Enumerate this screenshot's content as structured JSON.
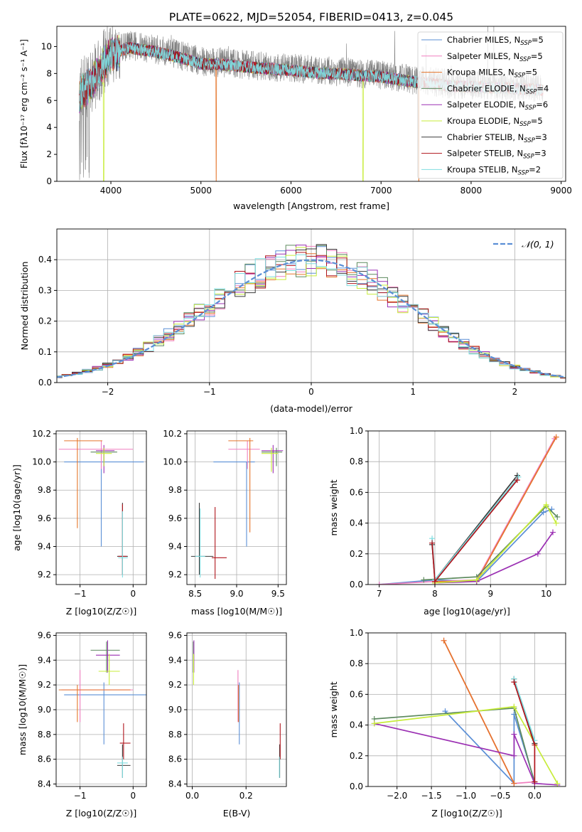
{
  "title": "PLATE=0622, MJD=52054, FIBERID=0413, z=0.045",
  "colors": {
    "chabrier_miles": "#5b8fd6",
    "salpeter_miles": "#f07fbf",
    "kroupa_miles": "#e5752a",
    "chabrier_elodie": "#5d8a5e",
    "salpeter_elodie": "#9b30b3",
    "kroupa_elodie": "#c7ec3a",
    "chabrier_stelib": "#3a3a3a",
    "salpeter_stelib": "#b0141c",
    "kroupa_stelib": "#7fdde0",
    "data": "#808080",
    "gaussian": "#5b8fd6",
    "grid": "#b0b0b0"
  },
  "chart_data": [
    {
      "id": "spectrum",
      "type": "line",
      "xlabel": "wavelength [Angstrom, rest frame]",
      "ylabel": "Flux [fλ10⁻¹⁷ erg cm⁻² s⁻¹ A⁻¹]",
      "xlim": [
        3400,
        9050
      ],
      "ylim": [
        0,
        11.5
      ],
      "xticks": [
        "4000",
        "5000",
        "6000",
        "7000",
        "8000",
        "9000"
      ],
      "yticks": [
        "0",
        "2",
        "4",
        "6",
        "8",
        "10"
      ],
      "grid": false,
      "legend_position": "top-right",
      "legend": [
        {
          "label": "Chabrier MILES, N",
          "sub": "SSP",
          "suffix": "=5"
        },
        {
          "label": "Salpeter MILES, N",
          "sub": "SSP",
          "suffix": "=5"
        },
        {
          "label": "Kroupa MILES, N",
          "sub": "SSP",
          "suffix": "=5"
        },
        {
          "label": "Chabrier ELODIE, N",
          "sub": "SSP",
          "suffix": "=4"
        },
        {
          "label": "Salpeter ELODIE, N",
          "sub": "SSP",
          "suffix": "=6"
        },
        {
          "label": "Kroupa ELODIE, N",
          "sub": "SSP",
          "suffix": "=5"
        },
        {
          "label": "Chabrier STELIB, N",
          "sub": "SSP",
          "suffix": "=3"
        },
        {
          "label": "Salpeter STELIB, N",
          "sub": "SSP",
          "suffix": "=3"
        },
        {
          "label": "Kroupa STELIB, N",
          "sub": "SSP",
          "suffix": "=2"
        }
      ],
      "data_trend": {
        "x": [
          3650,
          3800,
          4000,
          4200,
          4500,
          4800,
          5000,
          5300,
          5600,
          6000,
          6300,
          6600,
          7000,
          7400,
          7800,
          8200,
          8600,
          8800
        ],
        "y": [
          6.5,
          7.6,
          9.6,
          10.1,
          9.8,
          9.3,
          8.9,
          8.8,
          8.6,
          8.4,
          8.2,
          8.1,
          7.9,
          7.5,
          7.2,
          7.1,
          7.0,
          6.9
        ]
      },
      "model_dropouts": [
        {
          "x": 3920,
          "series": "kroupa_elodie"
        },
        {
          "x": 5170,
          "series": "kroupa_miles"
        },
        {
          "x": 6800,
          "series": "kroupa_elodie"
        },
        {
          "x": 7420,
          "series": "kroupa_miles"
        }
      ]
    },
    {
      "id": "residuals",
      "type": "bar",
      "xlabel": "(data-model)/error",
      "ylabel": "Normed distribution",
      "xlim": [
        -2.5,
        2.5
      ],
      "ylim": [
        0,
        0.5
      ],
      "xticks": [
        "−2",
        "−1",
        "0",
        "1",
        "2"
      ],
      "yticks": [
        "0.0",
        "0.1",
        "0.2",
        "0.3",
        "0.4"
      ],
      "grid": true,
      "legend_position": "top-right",
      "legend": [
        {
          "label": "𝒩(0, 1)"
        }
      ],
      "bin_width": 0.1
    },
    {
      "id": "age-vs-z",
      "type": "scatter",
      "xlabel": "Z [log10(Z/Z☉)]",
      "ylabel": "age  [log10(age/yr)]",
      "xlim": [
        -1.45,
        0.25
      ],
      "ylim": [
        9.13,
        10.22
      ],
      "xticks": [
        "−1",
        "0"
      ],
      "xtickvals": [
        -1,
        0
      ],
      "yticks": [
        "9.2",
        "9.4",
        "9.6",
        "9.8",
        "10.0",
        "10.2"
      ],
      "ytickvals": [
        9.2,
        9.4,
        9.6,
        9.8,
        10.0,
        10.2
      ],
      "grid": true,
      "points": [
        {
          "s": "chabrier_miles",
          "x": -0.6,
          "y": 10.0,
          "xe": [
            -1.3,
            0.2
          ],
          "ye": [
            9.4,
            10.0
          ]
        },
        {
          "s": "salpeter_miles",
          "x": -0.6,
          "y": 10.09,
          "xe": [
            -1.4,
            0.0
          ],
          "ye": [
            9.95,
            10.15
          ]
        },
        {
          "s": "kroupa_miles",
          "x": -1.05,
          "y": 10.15,
          "xe": [
            -1.3,
            -0.58
          ],
          "ye": [
            9.53,
            10.17
          ]
        },
        {
          "s": "chabrier_elodie",
          "x": -0.55,
          "y": 10.07,
          "xe": [
            -0.8,
            -0.3
          ],
          "ye": [
            9.97,
            10.1
          ]
        },
        {
          "s": "salpeter_elodie",
          "x": -0.55,
          "y": 10.08,
          "xe": [
            -0.7,
            -0.35
          ],
          "ye": [
            9.92,
            10.12
          ]
        },
        {
          "s": "kroupa_elodie",
          "x": -0.55,
          "y": 10.06,
          "xe": [
            -0.7,
            -0.4
          ],
          "ye": [
            9.97,
            10.1
          ]
        },
        {
          "s": "chabrier_stelib",
          "x": -0.2,
          "y": 9.33,
          "xe": [
            -0.3,
            -0.1
          ],
          "ye": [
            9.2,
            9.71
          ]
        },
        {
          "s": "salpeter_stelib",
          "x": -0.2,
          "y": 9.33,
          "xe": [
            -0.28,
            -0.12
          ],
          "ye": [
            9.2,
            9.7
          ]
        },
        {
          "s": "kroupa_stelib",
          "x": -0.2,
          "y": 9.32,
          "xe": [
            -0.28,
            -0.1
          ],
          "ye": [
            9.18,
            9.65
          ]
        }
      ]
    },
    {
      "id": "age-vs-mass",
      "type": "scatter",
      "xlabel": "mass [log10(M/M☉)]",
      "ylabel": "",
      "xlim": [
        8.4,
        9.6
      ],
      "ylim": [
        9.13,
        10.22
      ],
      "xticks": [
        "8.5",
        "9.0",
        "9.5"
      ],
      "xtickvals": [
        8.5,
        9.0,
        9.5
      ],
      "yticks": [
        "9.2",
        "9.4",
        "9.6",
        "9.8",
        "10.0",
        "10.2"
      ],
      "ytickvals": [
        9.2,
        9.4,
        9.6,
        9.8,
        10.0,
        10.2
      ],
      "grid": true,
      "points": [
        {
          "s": "chabrier_miles",
          "x": 9.12,
          "y": 10.0,
          "xe": [
            8.72,
            9.22
          ],
          "ye": [
            9.4,
            10.0
          ]
        },
        {
          "s": "salpeter_miles",
          "x": 9.13,
          "y": 10.09,
          "xe": [
            8.9,
            9.28
          ],
          "ye": [
            9.95,
            10.15
          ]
        },
        {
          "s": "kroupa_miles",
          "x": 9.16,
          "y": 10.15,
          "xe": [
            8.9,
            9.2
          ],
          "ye": [
            9.5,
            10.17
          ]
        },
        {
          "s": "chabrier_elodie",
          "x": 9.48,
          "y": 10.07,
          "xe": [
            9.3,
            9.55
          ],
          "ye": [
            9.97,
            10.1
          ]
        },
        {
          "s": "salpeter_elodie",
          "x": 9.44,
          "y": 10.08,
          "xe": [
            9.3,
            9.56
          ],
          "ye": [
            9.92,
            10.12
          ]
        },
        {
          "s": "kroupa_elodie",
          "x": 9.42,
          "y": 10.06,
          "xe": [
            9.3,
            9.5
          ],
          "ye": [
            9.93,
            10.1
          ]
        },
        {
          "s": "chabrier_stelib",
          "x": 8.55,
          "y": 9.33,
          "xe": [
            8.45,
            8.72
          ],
          "ye": [
            9.2,
            9.71
          ]
        },
        {
          "s": "salpeter_stelib",
          "x": 8.74,
          "y": 9.32,
          "xe": [
            8.7,
            8.88
          ],
          "ye": [
            9.17,
            9.68
          ]
        },
        {
          "s": "kroupa_stelib",
          "x": 8.56,
          "y": 9.33,
          "xe": [
            8.5,
            8.62
          ],
          "ye": [
            9.18,
            9.67
          ]
        }
      ]
    },
    {
      "id": "weight-vs-age",
      "type": "line",
      "xlabel": "age  [log10(age/yr)]",
      "ylabel": "mass weight",
      "xlim": [
        6.8,
        10.35
      ],
      "ylim": [
        0,
        1.0
      ],
      "xticks": [
        "7",
        "8",
        "9",
        "10"
      ],
      "xtickvals": [
        7,
        8,
        9,
        10
      ],
      "yticks": [
        "0.0",
        "0.2",
        "0.4",
        "0.6",
        "0.8",
        "1.0"
      ],
      "ytickvals": [
        0,
        0.2,
        0.4,
        0.6,
        0.8,
        1.0
      ],
      "grid": true,
      "series": [
        {
          "s": "chabrier_miles",
          "x": [
            7.0,
            8.0,
            8.75,
            9.95,
            10.1
          ],
          "y": [
            0.0,
            0.03,
            0.02,
            0.47,
            0.49
          ]
        },
        {
          "s": "salpeter_miles",
          "x": [
            7.0,
            8.0,
            8.75,
            10.15
          ],
          "y": [
            0.0,
            0.02,
            0.03,
            0.95
          ]
        },
        {
          "s": "kroupa_miles",
          "x": [
            8.0,
            8.75,
            10.18
          ],
          "y": [
            0.02,
            0.02,
            0.96
          ]
        },
        {
          "s": "chabrier_elodie",
          "x": [
            7.8,
            8.75,
            10.0,
            10.2
          ],
          "y": [
            0.03,
            0.05,
            0.51,
            0.44
          ]
        },
        {
          "s": "salpeter_elodie",
          "x": [
            8.0,
            8.75,
            9.85,
            10.12
          ],
          "y": [
            0.01,
            0.02,
            0.2,
            0.34
          ]
        },
        {
          "s": "kroupa_elodie",
          "x": [
            8.0,
            8.75,
            10.0,
            10.18
          ],
          "y": [
            0.01,
            0.03,
            0.52,
            0.4
          ]
        },
        {
          "s": "chabrier_stelib",
          "x": [
            7.95,
            8.0,
            9.48
          ],
          "y": [
            0.26,
            0.03,
            0.71
          ]
        },
        {
          "s": "kroupa_stelib",
          "x": [
            7.95,
            8.0,
            9.5
          ],
          "y": [
            0.3,
            0.03,
            0.7
          ]
        },
        {
          "s": "salpeter_stelib",
          "x": [
            7.95,
            8.0,
            9.48
          ],
          "y": [
            0.27,
            0.02,
            0.68
          ]
        }
      ]
    },
    {
      "id": "mass-vs-z",
      "type": "scatter",
      "xlabel": "Z [log10(Z/Z☉)]",
      "ylabel": "mass [log10(M/M☉)]",
      "xlim": [
        -1.45,
        0.25
      ],
      "ylim": [
        8.38,
        9.62
      ],
      "xticks": [
        "−1",
        "0"
      ],
      "xtickvals": [
        -1,
        0
      ],
      "yticks": [
        "8.4",
        "8.6",
        "8.8",
        "9.0",
        "9.2",
        "9.4",
        "9.6"
      ],
      "ytickvals": [
        8.4,
        8.6,
        8.8,
        9.0,
        9.2,
        9.4,
        9.6
      ],
      "grid": true,
      "points": [
        {
          "s": "chabrier_miles",
          "x": -0.55,
          "y": 9.12,
          "xe": [
            -1.3,
            0.25
          ],
          "ye": [
            8.72,
            9.22
          ]
        },
        {
          "s": "salpeter_miles",
          "x": -1.0,
          "y": 9.16,
          "xe": [
            -1.35,
            0.0
          ],
          "ye": [
            8.9,
            9.32
          ]
        },
        {
          "s": "kroupa_miles",
          "x": -1.05,
          "y": 9.16,
          "xe": [
            -1.4,
            -0.05
          ],
          "ye": [
            8.9,
            9.2
          ]
        },
        {
          "s": "chabrier_elodie",
          "x": -0.5,
          "y": 9.48,
          "xe": [
            -0.8,
            -0.25
          ],
          "ye": [
            9.3,
            9.55
          ]
        },
        {
          "s": "salpeter_elodie",
          "x": -0.48,
          "y": 9.44,
          "xe": [
            -0.7,
            -0.25
          ],
          "ye": [
            9.3,
            9.56
          ]
        },
        {
          "s": "kroupa_elodie",
          "x": -0.45,
          "y": 9.31,
          "xe": [
            -0.65,
            -0.25
          ],
          "ye": [
            9.2,
            9.45
          ]
        },
        {
          "s": "chabrier_stelib",
          "x": -0.2,
          "y": 8.55,
          "xe": [
            -0.3,
            -0.05
          ],
          "ye": [
            8.45,
            8.72
          ]
        },
        {
          "s": "salpeter_stelib",
          "x": -0.18,
          "y": 8.73,
          "xe": [
            -0.25,
            -0.05
          ],
          "ye": [
            8.6,
            8.89
          ]
        },
        {
          "s": "kroupa_stelib",
          "x": -0.2,
          "y": 8.57,
          "xe": [
            -0.3,
            -0.1
          ],
          "ye": [
            8.45,
            8.62
          ]
        }
      ]
    },
    {
      "id": "mass-vs-ebv",
      "type": "scatter",
      "xlabel": "E(B-V)",
      "ylabel": "",
      "xlim": [
        -0.02,
        0.35
      ],
      "ylim": [
        8.38,
        9.62
      ],
      "xticks": [
        "0.0",
        "0.2"
      ],
      "xtickvals": [
        0,
        0.2
      ],
      "yticks": [
        "8.4",
        "8.6",
        "8.8",
        "9.0",
        "9.2",
        "9.4",
        "9.6"
      ],
      "ytickvals": [
        8.4,
        8.6,
        8.8,
        9.0,
        9.2,
        9.4,
        9.6
      ],
      "grid": true,
      "points": [
        {
          "s": "chabrier_miles",
          "x": 0.175,
          "y": 9.12,
          "ye": [
            8.72,
            9.22
          ]
        },
        {
          "s": "salpeter_miles",
          "x": 0.17,
          "y": 9.16,
          "ye": [
            8.9,
            9.32
          ]
        },
        {
          "s": "kroupa_miles",
          "x": 0.172,
          "y": 9.16,
          "ye": [
            8.9,
            9.2
          ]
        },
        {
          "s": "chabrier_elodie",
          "x": 0.004,
          "y": 9.48,
          "ye": [
            9.3,
            9.55
          ]
        },
        {
          "s": "salpeter_elodie",
          "x": 0.006,
          "y": 9.44,
          "ye": [
            9.3,
            9.56
          ]
        },
        {
          "s": "kroupa_elodie",
          "x": 0.005,
          "y": 9.31,
          "ye": [
            9.2,
            9.45
          ]
        },
        {
          "s": "chabrier_stelib",
          "x": 0.325,
          "y": 8.55,
          "ye": [
            8.45,
            8.72
          ]
        },
        {
          "s": "salpeter_stelib",
          "x": 0.327,
          "y": 8.73,
          "ye": [
            8.6,
            8.89
          ]
        },
        {
          "s": "kroupa_stelib",
          "x": 0.324,
          "y": 8.57,
          "ye": [
            8.45,
            8.62
          ]
        }
      ]
    },
    {
      "id": "weight-vs-z",
      "type": "line",
      "xlabel": "Z [log10(Z/Z☉)]",
      "ylabel": "mass weight",
      "xlim": [
        -2.42,
        0.45
      ],
      "ylim": [
        0,
        1.0
      ],
      "xticks": [
        "−2.0",
        "−1.5",
        "−1.0",
        "−0.5",
        "0.0"
      ],
      "xtickvals": [
        -2.0,
        -1.5,
        -1.0,
        -0.5,
        0.0
      ],
      "yticks": [
        "0.0",
        "0.2",
        "0.4",
        "0.6",
        "0.8",
        "1.0"
      ],
      "ytickvals": [
        0,
        0.2,
        0.4,
        0.6,
        0.8,
        1.0
      ],
      "grid": true,
      "series": [
        {
          "s": "chabrier_miles",
          "x": [
            -1.3,
            -0.3,
            -0.3,
            0.0
          ],
          "y": [
            0.49,
            0.02,
            0.47,
            0.03
          ]
        },
        {
          "s": "salpeter_miles",
          "x": [
            -1.32,
            -0.3,
            0.0
          ],
          "y": [
            0.95,
            0.02,
            0.03
          ]
        },
        {
          "s": "kroupa_miles",
          "x": [
            -1.32,
            -0.3
          ],
          "y": [
            0.95,
            0.02
          ]
        },
        {
          "s": "chabrier_elodie",
          "x": [
            -2.33,
            -0.3,
            0.0,
            0.0
          ],
          "y": [
            0.44,
            0.51,
            0.02,
            0.03
          ]
        },
        {
          "s": "salpeter_elodie",
          "x": [
            -2.33,
            -0.3,
            -0.3,
            0.0,
            0.33
          ],
          "y": [
            0.41,
            0.2,
            0.34,
            0.02,
            0.01
          ]
        },
        {
          "s": "kroupa_elodie",
          "x": [
            -2.33,
            -0.3,
            0.33
          ],
          "y": [
            0.41,
            0.52,
            0.02
          ]
        },
        {
          "s": "chabrier_stelib",
          "x": [
            -0.3,
            0.0
          ],
          "y": [
            0.7,
            0.28
          ]
        },
        {
          "s": "kroupa_stelib",
          "x": [
            -0.3,
            0.0
          ],
          "y": [
            0.7,
            0.3
          ]
        },
        {
          "s": "salpeter_stelib",
          "x": [
            -0.3,
            0.0,
            0.0
          ],
          "y": [
            0.68,
            0.27,
            0.03
          ]
        }
      ]
    }
  ]
}
